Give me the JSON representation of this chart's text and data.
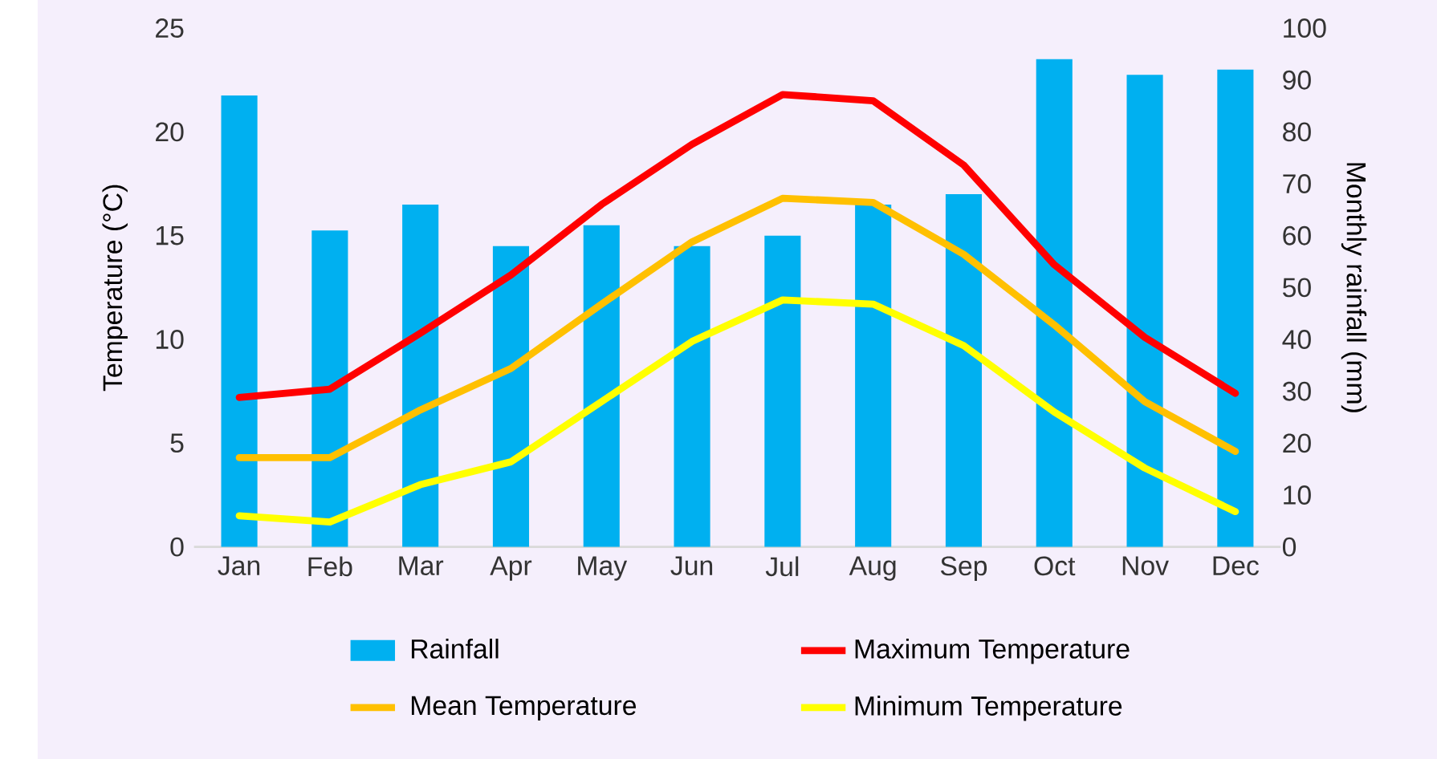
{
  "chart_data": {
    "type": "bar",
    "xlabel": null,
    "ylabel": "Temperature (°C)",
    "y2label": "Monthly rainfall (mm)",
    "categories": [
      "Jan",
      "Feb",
      "Mar",
      "Apr",
      "May",
      "Jun",
      "Jul",
      "Aug",
      "Sep",
      "Oct",
      "Nov",
      "Dec"
    ],
    "series": [
      {
        "name": "Rainfall",
        "axis": "y2",
        "color": "#00b0f0",
        "values": [
          87,
          61,
          66,
          58,
          62,
          58,
          60,
          66,
          68,
          94,
          91,
          92
        ]
      },
      {
        "name": "Maximum Temperature",
        "type": "line",
        "color": "#ff0000",
        "values": [
          7.2,
          7.6,
          10.3,
          13.1,
          16.5,
          19.4,
          21.8,
          21.5,
          18.4,
          13.6,
          10.1,
          7.4
        ]
      },
      {
        "name": "Mean Temperature",
        "type": "line",
        "color": "#ffc000",
        "values": [
          4.3,
          4.3,
          6.6,
          8.6,
          11.7,
          14.7,
          16.8,
          16.6,
          14.1,
          10.7,
          7.0,
          4.6
        ]
      },
      {
        "name": "Minimum Temperature",
        "type": "line",
        "color": "#ffff00",
        "values": [
          1.5,
          1.2,
          3.0,
          4.1,
          7.0,
          9.9,
          11.9,
          11.7,
          9.7,
          6.5,
          3.8,
          1.7
        ]
      }
    ],
    "ylim": [
      0,
      25
    ],
    "yticks": [
      0,
      5,
      10,
      15,
      20,
      25
    ],
    "y2lim": [
      0,
      100
    ],
    "y2ticks": [
      0,
      10,
      20,
      30,
      40,
      50,
      60,
      70,
      80,
      90,
      100
    ],
    "legend": "bottom"
  }
}
